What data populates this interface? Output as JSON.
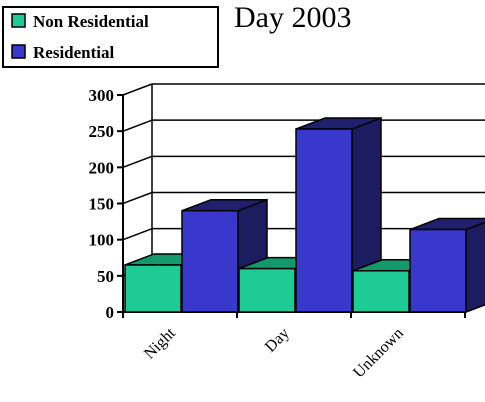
{
  "chart_data": {
    "type": "bar",
    "title": "Day 2003",
    "categories": [
      "Night",
      "Day",
      "Unknown"
    ],
    "series": [
      {
        "name": "Non Residential",
        "values": [
          65,
          60,
          57
        ]
      },
      {
        "name": "Residential",
        "values": [
          140,
          253,
          114
        ]
      }
    ],
    "ylim": [
      0,
      300
    ],
    "yticks": [
      0,
      50,
      100,
      150,
      200,
      250,
      300
    ],
    "grid": true,
    "legend_position": "top-left",
    "colors": {
      "Non Residential": {
        "front": "#1fcb95",
        "top": "#129a6c",
        "side": "#0e8059"
      },
      "Residential": {
        "front": "#3838cc",
        "top": "#20206e",
        "side": "#1c1c60"
      }
    }
  }
}
